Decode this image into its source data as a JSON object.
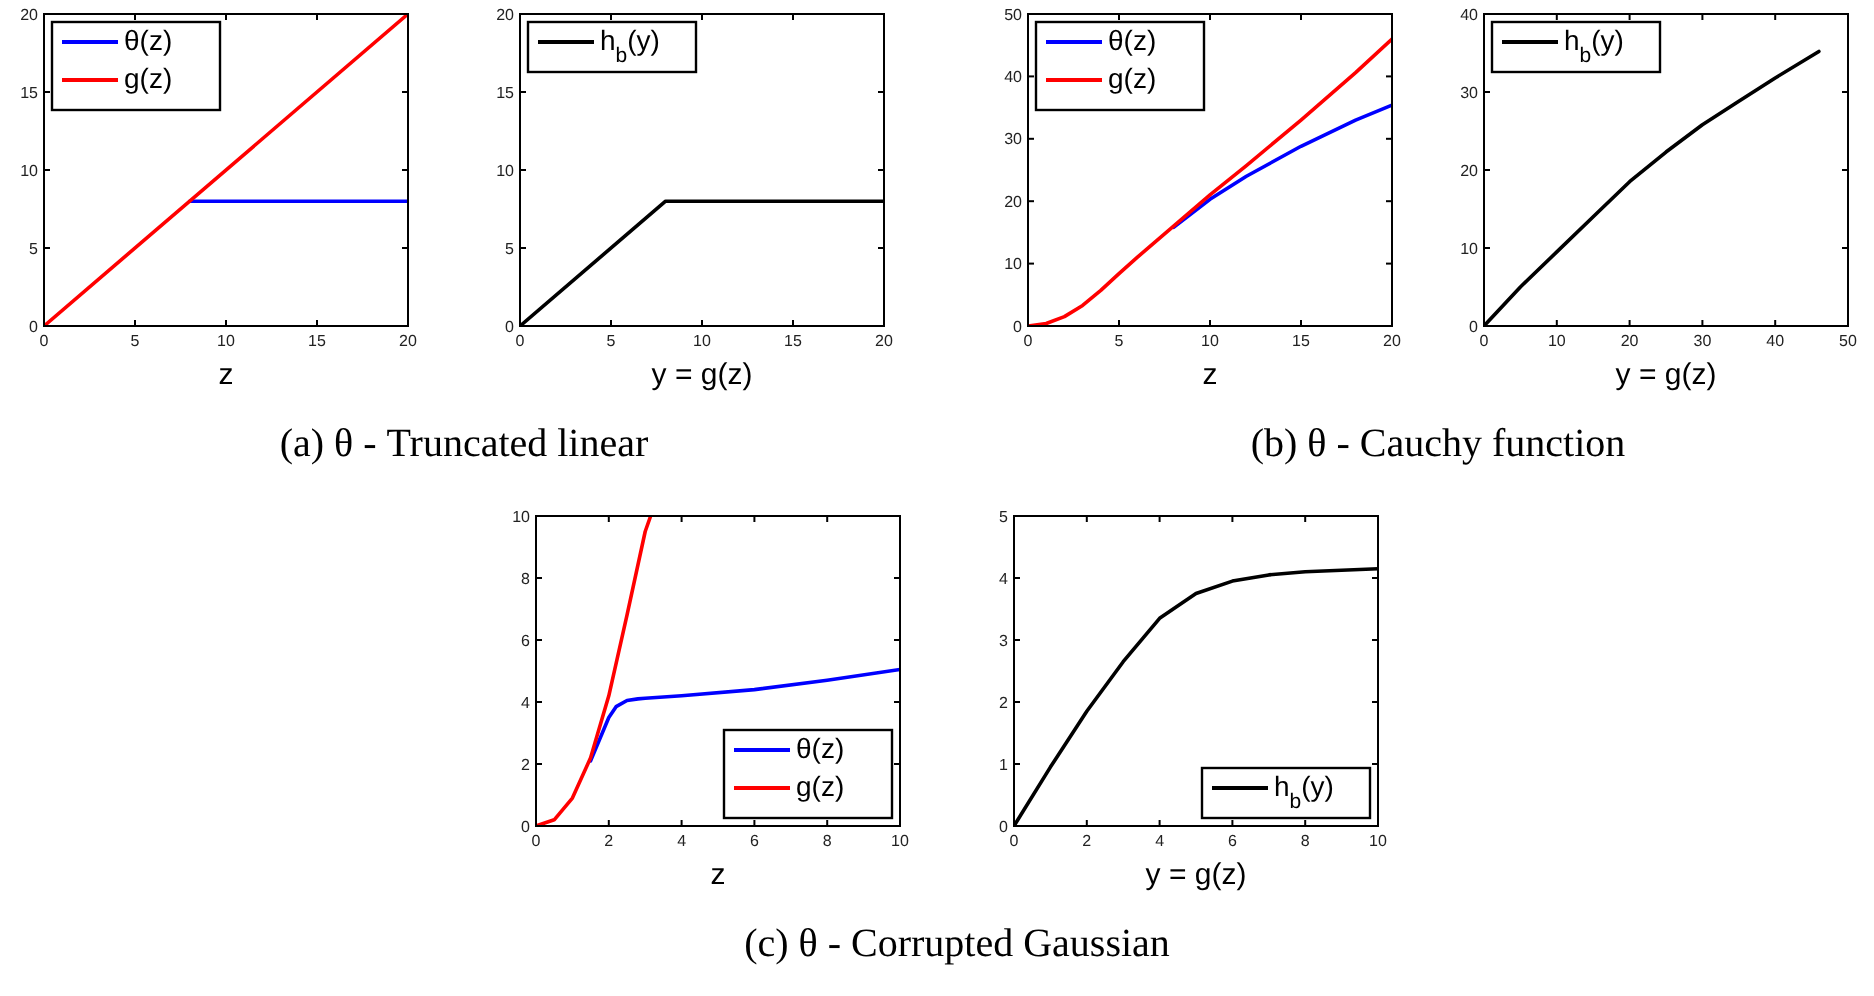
{
  "chart_data": [
    {
      "type": "line",
      "xlabel": "z",
      "xlim": [
        0,
        20
      ],
      "ylim": [
        0,
        20
      ],
      "xticks": [
        0,
        5,
        10,
        15,
        20
      ],
      "yticks": [
        0,
        5,
        10,
        15,
        20
      ],
      "legend": "top left",
      "annotations": [
        "(a) θ - Truncated linear"
      ],
      "series": [
        {
          "name": "θ(z)",
          "color": "#0000ff",
          "x": [
            8,
            20
          ],
          "values": [
            8,
            8
          ]
        },
        {
          "name": "g(z)",
          "color": "#ff0000",
          "x": [
            0,
            20
          ],
          "values": [
            0,
            20
          ]
        }
      ]
    },
    {
      "type": "line",
      "xlabel": "y = g(z)",
      "xlim": [
        0,
        20
      ],
      "ylim": [
        0,
        20
      ],
      "xticks": [
        0,
        5,
        10,
        15,
        20
      ],
      "yticks": [
        0,
        5,
        10,
        15,
        20
      ],
      "legend": "top left",
      "series": [
        {
          "name": "h$_{b}$(y)",
          "color": "#000000",
          "x": [
            0,
            8,
            20
          ],
          "values": [
            0,
            8,
            8
          ]
        }
      ]
    },
    {
      "type": "line",
      "xlabel": "z",
      "xlim": [
        0,
        20
      ],
      "ylim": [
        0,
        50
      ],
      "xticks": [
        0,
        5,
        10,
        15,
        20
      ],
      "yticks": [
        0,
        10,
        20,
        30,
        40,
        50
      ],
      "legend": "top left",
      "annotations": [
        "(b) θ - Cauchy function"
      ],
      "series": [
        {
          "name": "θ(z)",
          "color": "#0000ff",
          "x": [
            8,
            10,
            12,
            15,
            18,
            20
          ],
          "values": [
            15.8,
            20.3,
            24,
            28.8,
            33,
            35.4
          ]
        },
        {
          "name": "g(z)",
          "color": "#ff0000",
          "x": [
            0,
            1,
            2,
            3,
            4,
            5,
            6,
            8,
            10,
            12,
            15,
            18,
            20
          ],
          "values": [
            0,
            0.4,
            1.5,
            3.3,
            5.7,
            8.4,
            11,
            16,
            21,
            25.7,
            33,
            40.6,
            46
          ]
        }
      ]
    },
    {
      "type": "line",
      "xlabel": "y = g(z)",
      "xlim": [
        0,
        50
      ],
      "ylim": [
        0,
        40
      ],
      "xticks": [
        0,
        10,
        20,
        30,
        40,
        50
      ],
      "yticks": [
        0,
        10,
        20,
        30,
        40
      ],
      "legend": "top left",
      "series": [
        {
          "name": "h$_{b}$(y)",
          "color": "#000000",
          "x": [
            0,
            5,
            10,
            15,
            20,
            25,
            30,
            35,
            40,
            46
          ],
          "values": [
            0,
            5,
            9.5,
            14,
            18.5,
            22.3,
            25.8,
            28.8,
            31.8,
            35.2
          ]
        }
      ]
    },
    {
      "type": "line",
      "xlabel": "z",
      "xlim": [
        0,
        10
      ],
      "ylim": [
        0,
        10
      ],
      "xticks": [
        0,
        2,
        4,
        6,
        8,
        10
      ],
      "yticks": [
        0,
        2,
        4,
        6,
        8,
        10
      ],
      "legend": "bottom right",
      "annotations": [
        "(c) θ - Corrupted Gaussian"
      ],
      "series": [
        {
          "name": "θ(z)",
          "color": "#0000ff",
          "x": [
            1.5,
            2,
            2.2,
            2.5,
            2.8,
            3,
            4,
            6,
            8,
            10
          ],
          "values": [
            2.1,
            3.5,
            3.85,
            4.05,
            4.1,
            4.12,
            4.2,
            4.4,
            4.7,
            5.05
          ]
        },
        {
          "name": "g(z)",
          "color": "#ff0000",
          "x": [
            0,
            0.5,
            1,
            1.5,
            2,
            2.5,
            3,
            3.15
          ],
          "values": [
            0,
            0.2,
            0.9,
            2.2,
            4.2,
            6.8,
            9.5,
            10
          ]
        }
      ]
    },
    {
      "type": "line",
      "xlabel": "y = g(z)",
      "xlim": [
        0,
        10
      ],
      "ylim": [
        0,
        5
      ],
      "xticks": [
        0,
        2,
        4,
        6,
        8,
        10
      ],
      "yticks": [
        0,
        1,
        2,
        3,
        4,
        5
      ],
      "legend": "bottom right",
      "series": [
        {
          "name": "h$_{b}$(y)",
          "color": "#000000",
          "x": [
            0,
            1,
            2,
            3,
            4,
            5,
            6,
            7,
            8,
            10
          ],
          "values": [
            0,
            0.95,
            1.85,
            2.65,
            3.35,
            3.75,
            3.95,
            4.05,
            4.1,
            4.15
          ]
        }
      ]
    }
  ]
}
